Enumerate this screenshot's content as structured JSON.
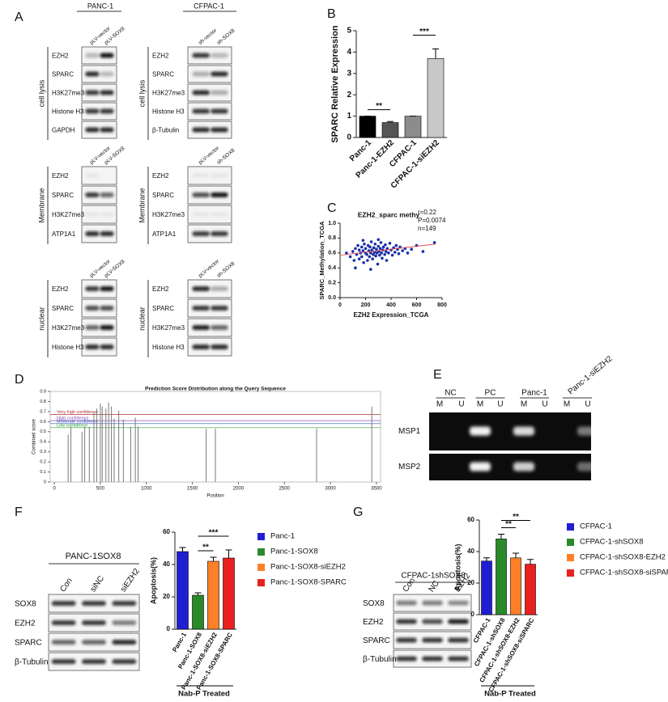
{
  "panel_labels": [
    "A",
    "B",
    "C",
    "D",
    "E",
    "F",
    "G"
  ],
  "panel_a": {
    "groups": [
      {
        "header": "PANC-1",
        "sections": [
          {
            "side": "cell lysis",
            "columns": [
              "pLV-vector",
              "pLV-SOX8"
            ],
            "rows": [
              "EZH2",
              "SPARC",
              "H3K27me3",
              "Histone H3",
              "GAPDH"
            ]
          },
          {
            "side": "Membrane",
            "columns": [
              "pLV-vector",
              "pLV-SOX8"
            ],
            "rows": [
              "EZH2",
              "SPARC",
              "H3K27me3",
              "ATP1A1"
            ]
          },
          {
            "side": "nuclear",
            "columns": [
              "pLV-vector",
              "pLV-SOX8"
            ],
            "rows": [
              "EZH2",
              "SPARC",
              "H3K27me3",
              "Histone H3"
            ]
          }
        ]
      },
      {
        "header": "CFPAC-1",
        "sections": [
          {
            "side": "cell lysis",
            "columns": [
              "sh-vector",
              "sh-SOX8"
            ],
            "rows": [
              "EZH2",
              "SPARC",
              "H3K27me3",
              "Histone H3",
              "β-Tubulin"
            ]
          },
          {
            "side": "Membrane",
            "columns": [
              "pLV-vector",
              "sh-SOX8"
            ],
            "rows": [
              "EZH2",
              "SPARC",
              "H3K27me3",
              "ATP1A1"
            ]
          },
          {
            "side": "nuclear",
            "columns": [
              "pLV-vector",
              "sh-SOX8"
            ],
            "rows": [
              "EZH2",
              "SPARC",
              "H3K27me3",
              "Histone H3"
            ]
          }
        ]
      }
    ]
  },
  "panel_e": {
    "groups": [
      "NC",
      "PC",
      "Panc-1",
      "Panc-1-siEZH2"
    ],
    "lanes": [
      "M",
      "U",
      "M",
      "U",
      "M",
      "U",
      "M",
      "U"
    ],
    "rows": [
      "MSP1",
      "MSP2"
    ]
  },
  "panel_f_blot": {
    "title": "PANC-1SOX8",
    "columns": [
      "Con",
      "siNC",
      "siEZH2"
    ],
    "rows": [
      "SOX8",
      "EZH2",
      "SPARC",
      "β-Tubulin"
    ]
  },
  "panel_g_blot": {
    "title": "CFPAC-1shSOX8",
    "columns": [
      "Con",
      "NC",
      "EZH2"
    ],
    "rows": [
      "SOX8",
      "EZH2",
      "SPARC",
      "β-Tubulin"
    ]
  },
  "chart_data": [
    {
      "type": "bar",
      "y_label": "SPARC Relative Expression",
      "categories": [
        "Panc-1",
        "Panc-1-EZH2",
        "CFPAC-1",
        "CFPAC-1-siEZH2"
      ],
      "values": [
        1,
        0.7,
        1,
        3.7
      ],
      "errors": [
        0,
        0.05,
        0,
        0.45
      ],
      "colors": [
        "#000000",
        "#555555",
        "#8c8c8c",
        "#c8c8c8"
      ],
      "ylim": [
        0,
        5
      ],
      "yticks": [
        0,
        1,
        2,
        3,
        4,
        5
      ],
      "annotations": [
        {
          "text": "**",
          "from": "Panc-1",
          "to": "Panc-1-EZH2"
        },
        {
          "text": "***",
          "from": "CFPAC-1",
          "to": "CFPAC-1-siEZH2"
        }
      ]
    },
    {
      "type": "scatter",
      "title": "EZH2_sparc methy",
      "x_label": "EZH2 Expression_TCGA",
      "y_label": "SPARC_Methylation_TCGA",
      "stats": [
        "r=0.22",
        "P=0.0074",
        "n=149"
      ],
      "color": "#1a2fa8",
      "x": [
        50,
        80,
        100,
        110,
        120,
        130,
        140,
        150,
        150,
        160,
        170,
        170,
        180,
        185,
        190,
        200,
        200,
        210,
        215,
        220,
        225,
        230,
        235,
        240,
        245,
        250,
        255,
        260,
        265,
        270,
        275,
        280,
        285,
        290,
        295,
        300,
        305,
        310,
        315,
        320,
        325,
        330,
        335,
        340,
        350,
        355,
        360,
        365,
        370,
        380,
        390,
        400,
        410,
        420,
        430,
        440,
        450,
        460,
        470,
        490,
        510,
        530,
        560,
        600,
        650,
        740,
        120,
        240,
        180,
        300
      ],
      "values": [
        0.6,
        0.55,
        0.62,
        0.5,
        0.66,
        0.58,
        0.7,
        0.52,
        0.64,
        0.6,
        0.68,
        0.55,
        0.63,
        0.47,
        0.72,
        0.6,
        0.66,
        0.58,
        0.5,
        0.7,
        0.63,
        0.55,
        0.68,
        0.6,
        0.75,
        0.64,
        0.52,
        0.58,
        0.67,
        0.61,
        0.72,
        0.56,
        0.65,
        0.6,
        0.45,
        0.69,
        0.62,
        0.57,
        0.66,
        0.74,
        0.6,
        0.53,
        0.64,
        0.68,
        0.58,
        0.71,
        0.62,
        0.5,
        0.66,
        0.6,
        0.73,
        0.64,
        0.57,
        0.67,
        0.61,
        0.7,
        0.65,
        0.59,
        0.68,
        0.63,
        0.66,
        0.6,
        0.65,
        0.7,
        0.62,
        0.74,
        0.4,
        0.38,
        0.77,
        0.78
      ],
      "trend": {
        "x": [
          0,
          750
        ],
        "values": [
          0.57,
          0.72
        ],
        "color": "#e05050"
      },
      "xlim": [
        0,
        800
      ],
      "xticks": [
        0,
        200,
        400,
        600,
        800
      ],
      "ylim": [
        0,
        1
      ],
      "yticks": [
        {
          "value": 0,
          "label": "0.0"
        },
        0.2,
        0.4,
        0.6,
        0.8,
        {
          "value": 1,
          "label": "1.0"
        }
      ]
    },
    {
      "type": "stem",
      "title": "Prediction Score Distribution along the Query Sequence",
      "x_label": "Position",
      "y_label": "Combined score",
      "color": "#7a7a7a",
      "x": [
        150,
        180,
        300,
        330,
        380,
        430,
        460,
        500,
        520,
        560,
        590,
        620,
        650,
        700,
        750,
        830,
        880,
        910,
        1650,
        1750,
        2850,
        3450
      ],
      "values": [
        0.47,
        0.55,
        0.5,
        0.55,
        0.55,
        0.7,
        0.73,
        0.78,
        0.75,
        0.73,
        0.79,
        0.75,
        0.63,
        0.71,
        0.62,
        0.55,
        0.64,
        0.55,
        0.53,
        0.53,
        0.53,
        0.75
      ],
      "thresholds": [
        {
          "label": "Very high confidence",
          "value": 0.67,
          "color": "#b03030"
        },
        {
          "label": "High confidence",
          "value": 0.61,
          "color": "#9050b0"
        },
        {
          "label": "Moderate confidence",
          "value": 0.58,
          "color": "#3050c0"
        },
        {
          "label": "Low confidence",
          "value": 0.54,
          "color": "#30a030"
        }
      ],
      "xlim": [
        -45,
        3545
      ],
      "xticks": [
        0,
        500,
        1000,
        1500,
        2000,
        2500,
        3000,
        3500
      ],
      "ylim": [
        0,
        0.9
      ],
      "yticks": [
        0,
        0.1,
        0.2,
        0.3,
        0.4,
        0.5,
        0.6,
        0.7,
        0.8,
        0.9
      ]
    },
    {
      "type": "bar",
      "y_label": "Apoptosis(%)",
      "x_label": "Nab-P Treated",
      "legend": true,
      "categories": [
        "Panc-1",
        "Panc-1-SOX8",
        "Panc-1-SOX8-siEZH2",
        "Panc-1-SOX8-SPARC"
      ],
      "values": [
        48,
        21,
        42,
        44
      ],
      "errors": [
        2.5,
        1.5,
        2.5,
        5
      ],
      "colors": [
        "#1f1fd1",
        "#2a8a2a",
        "#ff7f27",
        "#e8201f"
      ],
      "ylim": [
        0,
        60
      ],
      "yticks": [
        0,
        20,
        40,
        60
      ],
      "annotations": [
        {
          "text": "**",
          "from": "Panc-1-SOX8",
          "to": "Panc-1-SOX8-siEZH2"
        },
        {
          "text": "***",
          "from": "Panc-1-SOX8",
          "to": "Panc-1-SOX8-SPARC"
        }
      ]
    },
    {
      "type": "bar",
      "y_label": "Apoptosis(%)",
      "x_label": "Nab-P Treated",
      "legend": true,
      "categories": [
        "CFPAC-1",
        "CFPAC-1-shSOX8",
        "CFPAC-1-shSOX8-EZH2",
        "CFPAC-1-shSOX8-siSPARC"
      ],
      "values": [
        34,
        48,
        36,
        32
      ],
      "errors": [
        2,
        3,
        3,
        3
      ],
      "colors": [
        "#1f1fd1",
        "#2a8a2a",
        "#ff7f27",
        "#e8201f"
      ],
      "ylim": [
        0,
        60
      ],
      "yticks": [
        0,
        20,
        40,
        60
      ],
      "annotations": [
        {
          "text": "**",
          "from": "CFPAC-1-shSOX8",
          "to": "CFPAC-1-shSOX8-EZH2"
        },
        {
          "text": "**",
          "from": "CFPAC-1-shSOX8",
          "to": "CFPAC-1-shSOX8-siSPARC"
        }
      ]
    }
  ]
}
